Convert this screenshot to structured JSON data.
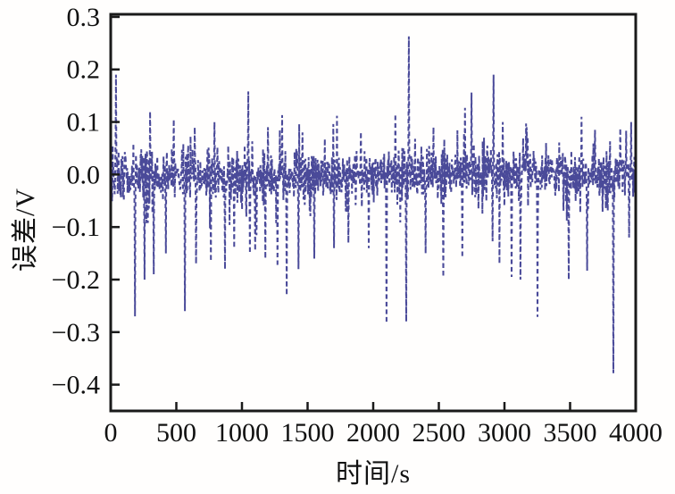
{
  "figure": {
    "background": "#fffefd",
    "axis_color": "#1a1a1a",
    "text_color": "#111111"
  },
  "chart_data": {
    "type": "line",
    "title": "",
    "xlabel": "时间/s",
    "ylabel": "误差/V",
    "xlim": [
      0,
      4000
    ],
    "ylim": [
      -0.45,
      0.305
    ],
    "xticks": [
      0,
      500,
      1000,
      1500,
      2000,
      2500,
      3000,
      3500,
      4000
    ],
    "yticks": [
      0.3,
      0.2,
      0.1,
      0.0,
      -0.1,
      -0.2,
      -0.3,
      -0.4
    ],
    "grid": false,
    "legend": false,
    "line": {
      "color": "#4a4a99",
      "style": "dashed",
      "dash": [
        5,
        3.5
      ],
      "width": 2
    },
    "series": [
      {
        "name": "误差",
        "signal": {
          "kind": "random-noise",
          "mean": 0.0,
          "std": 0.022,
          "tail_std": 0.045,
          "tail_prob": 0.13,
          "n_points": 1600,
          "seed": 20240607
        },
        "spikes": [
          [
            40,
            0.19
          ],
          [
            184,
            -0.27
          ],
          [
            258,
            -0.2
          ],
          [
            300,
            0.12
          ],
          [
            327,
            -0.19
          ],
          [
            420,
            -0.15
          ],
          [
            480,
            0.105
          ],
          [
            565,
            -0.26
          ],
          [
            640,
            0.09
          ],
          [
            650,
            -0.17
          ],
          [
            762,
            -0.165
          ],
          [
            790,
            0.1
          ],
          [
            870,
            -0.18
          ],
          [
            940,
            -0.14
          ],
          [
            1048,
            0.158
          ],
          [
            1060,
            -0.15
          ],
          [
            1100,
            -0.145
          ],
          [
            1177,
            -0.16
          ],
          [
            1197,
            0.09
          ],
          [
            1272,
            -0.175
          ],
          [
            1306,
            0.113
          ],
          [
            1340,
            -0.23
          ],
          [
            1430,
            -0.18
          ],
          [
            1460,
            0.08
          ],
          [
            1550,
            -0.16
          ],
          [
            1695,
            0.096
          ],
          [
            1700,
            -0.14
          ],
          [
            1810,
            -0.13
          ],
          [
            1905,
            0.081
          ],
          [
            1966,
            -0.14
          ],
          [
            2102,
            -0.283
          ],
          [
            2170,
            0.115
          ],
          [
            2251,
            -0.28
          ],
          [
            2272,
            0.263
          ],
          [
            2400,
            -0.15
          ],
          [
            2460,
            0.09
          ],
          [
            2535,
            -0.195
          ],
          [
            2680,
            -0.158
          ],
          [
            2698,
            0.127
          ],
          [
            2748,
            0.156
          ],
          [
            2910,
            -0.127
          ],
          [
            2918,
            0.19
          ],
          [
            2986,
            0.1
          ],
          [
            3054,
            -0.195
          ],
          [
            3122,
            -0.2
          ],
          [
            3170,
            0.09
          ],
          [
            3252,
            -0.271
          ],
          [
            3489,
            -0.2
          ],
          [
            3588,
            0.11
          ],
          [
            3631,
            -0.183
          ],
          [
            3690,
            0.085
          ],
          [
            3830,
            -0.378
          ],
          [
            3883,
            0.088
          ],
          [
            3950,
            -0.12
          ],
          [
            3966,
            0.1
          ]
        ]
      }
    ]
  }
}
